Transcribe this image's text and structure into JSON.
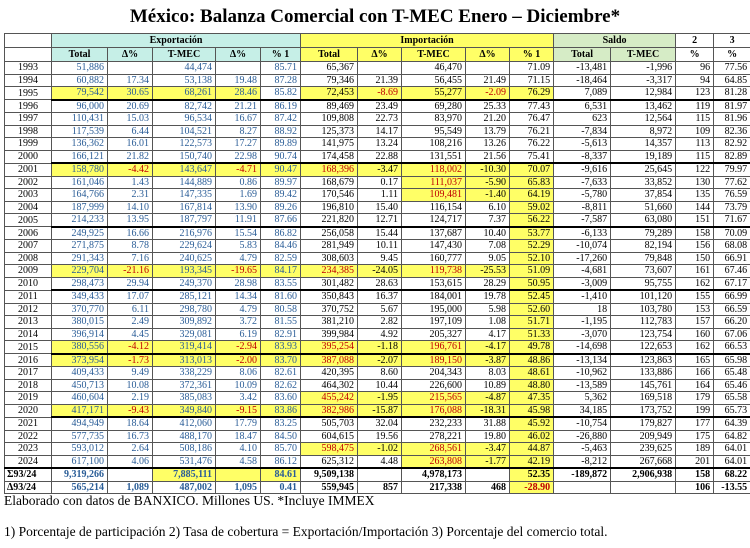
{
  "title": "México: Balanza Comercial con T-MEC Enero – Diciembre*",
  "headers": {
    "group": [
      "Exportación",
      "Importación",
      "Saldo",
      "2",
      "3"
    ],
    "sub": [
      "Total",
      "Δ%",
      "T-MEC",
      "Δ%",
      "% 1",
      "Total",
      "Δ%",
      "T-MEC",
      "Δ%",
      "% 1",
      "Total",
      "T-MEC",
      "%",
      "%"
    ]
  },
  "rows": [
    [
      "1993",
      "51,886",
      "",
      "44,474",
      "",
      "85.71",
      "65,367",
      "",
      "46,470",
      "",
      "71.09",
      "-13,481",
      "-1,996",
      "96",
      "77.56"
    ],
    [
      "1994",
      "60,882",
      "17.34",
      "53,138",
      "19.48",
      "87.28",
      "79,346",
      "21.39",
      "56,455",
      "21.49",
      "71.15",
      "-18,464",
      "-3,317",
      "94",
      "64.85"
    ],
    [
      "1995",
      "79,542",
      "30.65",
      "68,261",
      "28.46",
      "85.82",
      "72,453",
      "-8.69",
      "55,277",
      "-2.09",
      "76.29",
      "7,089",
      "12,984",
      "123",
      "81.28"
    ],
    [
      "1996",
      "96,000",
      "20.69",
      "82,742",
      "21.21",
      "86.19",
      "89,469",
      "23.49",
      "69,280",
      "25.33",
      "77.43",
      "6,531",
      "13,462",
      "119",
      "81.97"
    ],
    [
      "1997",
      "110,431",
      "15.03",
      "96,534",
      "16.67",
      "87.42",
      "109,808",
      "22.73",
      "83,970",
      "21.20",
      "76.47",
      "623",
      "12,564",
      "115",
      "81.96"
    ],
    [
      "1998",
      "117,539",
      "6.44",
      "104,521",
      "8.27",
      "88.92",
      "125,373",
      "14.17",
      "95,549",
      "13.79",
      "76.21",
      "-7,834",
      "8,972",
      "109",
      "82.36"
    ],
    [
      "1999",
      "136,362",
      "16.01",
      "122,573",
      "17.27",
      "89.89",
      "141,975",
      "13.24",
      "108,216",
      "13.26",
      "76.22",
      "-5,613",
      "14,357",
      "113",
      "82.92"
    ],
    [
      "2000",
      "166,121",
      "21.82",
      "150,740",
      "22.98",
      "90.74",
      "174,458",
      "22.88",
      "131,551",
      "21.56",
      "75.41",
      "-8,337",
      "19,189",
      "115",
      "82.89"
    ],
    [
      "2001",
      "158,780",
      "-4.42",
      "143,647",
      "-4.71",
      "90.47",
      "168,396",
      "-3.47",
      "118,002",
      "-10.30",
      "70.07",
      "-9,616",
      "25,645",
      "122",
      "79.97"
    ],
    [
      "2002",
      "161,046",
      "1.43",
      "144,889",
      "0.86",
      "89.97",
      "168,679",
      "0.17",
      "111,037",
      "-5.90",
      "65.83",
      "-7,633",
      "33,852",
      "130",
      "77.62"
    ],
    [
      "2003",
      "164,766",
      "2.31",
      "147,335",
      "1.69",
      "89.42",
      "170,546",
      "1.11",
      "109,481",
      "-1.40",
      "64.19",
      "-5,780",
      "37,854",
      "135",
      "76.59"
    ],
    [
      "2004",
      "187,999",
      "14.10",
      "167,814",
      "13.90",
      "89.26",
      "196,810",
      "15.40",
      "116,154",
      "6.10",
      "59.02",
      "-8,811",
      "51,660",
      "144",
      "73.79"
    ],
    [
      "2005",
      "214,233",
      "13.95",
      "187,797",
      "11.91",
      "87.66",
      "221,820",
      "12.71",
      "124,717",
      "7.37",
      "56.22",
      "-7,587",
      "63,080",
      "151",
      "71.67"
    ],
    [
      "2006",
      "249,925",
      "16.66",
      "216,976",
      "15.54",
      "86.82",
      "256,058",
      "15.44",
      "137,687",
      "10.40",
      "53.77",
      "-6,133",
      "79,289",
      "158",
      "70.09"
    ],
    [
      "2007",
      "271,875",
      "8.78",
      "229,624",
      "5.83",
      "84.46",
      "281,949",
      "10.11",
      "147,430",
      "7.08",
      "52.29",
      "-10,074",
      "82,194",
      "156",
      "68.08"
    ],
    [
      "2008",
      "291,343",
      "7.16",
      "240,625",
      "4.79",
      "82.59",
      "308,603",
      "9.45",
      "160,777",
      "9.05",
      "52.10",
      "-17,260",
      "79,848",
      "150",
      "66.91"
    ],
    [
      "2009",
      "229,704",
      "-21.16",
      "193,345",
      "-19.65",
      "84.17",
      "234,385",
      "-24.05",
      "119,738",
      "-25.53",
      "51.09",
      "-4,681",
      "73,607",
      "161",
      "67.46"
    ],
    [
      "2010",
      "298,473",
      "29.94",
      "249,370",
      "28.98",
      "83.55",
      "301,482",
      "28.63",
      "153,615",
      "28.29",
      "50.95",
      "-3,009",
      "95,755",
      "162",
      "67.17"
    ],
    [
      "2011",
      "349,433",
      "17.07",
      "285,121",
      "14.34",
      "81.60",
      "350,843",
      "16.37",
      "184,001",
      "19.78",
      "52.45",
      "-1,410",
      "101,120",
      "155",
      "66.99"
    ],
    [
      "2012",
      "370,770",
      "6.11",
      "298,780",
      "4.79",
      "80.58",
      "370,752",
      "5.67",
      "195,000",
      "5.98",
      "52.60",
      "18",
      "103,780",
      "153",
      "66.59"
    ],
    [
      "2013",
      "380,015",
      "2.49",
      "309,892",
      "3.72",
      "81.55",
      "381,210",
      "2.82",
      "197,109",
      "1.08",
      "51.71",
      "-1,195",
      "112,783",
      "157",
      "66.20"
    ],
    [
      "2014",
      "396,914",
      "4.45",
      "329,081",
      "6.19",
      "82.91",
      "399,984",
      "4.92",
      "205,327",
      "4.17",
      "51.33",
      "-3,070",
      "123,754",
      "160",
      "67.06"
    ],
    [
      "2015",
      "380,556",
      "-4.12",
      "319,414",
      "-2.94",
      "83.93",
      "395,254",
      "-1.18",
      "196,761",
      "-4.17",
      "49.78",
      "-14,698",
      "122,653",
      "162",
      "66.53"
    ],
    [
      "2016",
      "373,954",
      "-1.73",
      "313,013",
      "-2.00",
      "83.70",
      "387,088",
      "-2.07",
      "189,150",
      "-3.87",
      "48.86",
      "-13,134",
      "123,863",
      "165",
      "65.98"
    ],
    [
      "2017",
      "409,433",
      "9.49",
      "338,229",
      "8.06",
      "82.61",
      "420,395",
      "8.60",
      "204,343",
      "8.03",
      "48.61",
      "-10,962",
      "133,886",
      "166",
      "65.48"
    ],
    [
      "2018",
      "450,713",
      "10.08",
      "372,361",
      "10.09",
      "82.62",
      "464,302",
      "10.44",
      "226,600",
      "10.89",
      "48.80",
      "-13,589",
      "145,761",
      "164",
      "65.46"
    ],
    [
      "2019",
      "460,604",
      "2.19",
      "385,083",
      "3.42",
      "83.60",
      "455,242",
      "-1.95",
      "215,565",
      "-4.87",
      "47.35",
      "5,362",
      "169,518",
      "179",
      "65.58"
    ],
    [
      "2020",
      "417,171",
      "-9.43",
      "349,840",
      "-9.15",
      "83.86",
      "382,986",
      "-15.87",
      "176,088",
      "-18.31",
      "45.98",
      "34,185",
      "173,752",
      "199",
      "65.73"
    ],
    [
      "2021",
      "494,949",
      "18.64",
      "412,060",
      "17.79",
      "83.25",
      "505,703",
      "32.04",
      "232,233",
      "31.88",
      "45.92",
      "-10,754",
      "179,827",
      "177",
      "64.39"
    ],
    [
      "2022",
      "577,735",
      "16.73",
      "488,170",
      "18.47",
      "84.50",
      "604,615",
      "19.56",
      "278,221",
      "19.80",
      "46.02",
      "-26,880",
      "209,949",
      "175",
      "64.82"
    ],
    [
      "2023",
      "593,012",
      "2.64",
      "508,186",
      "4.10",
      "85.70",
      "598,475",
      "-1.02",
      "268,561",
      "-3.47",
      "44.87",
      "-5,463",
      "239,625",
      "189",
      "64.01"
    ],
    [
      "2024",
      "617,100",
      "4.06",
      "531,476",
      "4.58",
      "86.12",
      "625,312",
      "4.48",
      "263,808",
      "-1.77",
      "42.19",
      "-8,212",
      "267,668",
      "201",
      "64.01"
    ]
  ],
  "totals": [
    [
      "Σ93/24",
      "9,319,266",
      "",
      "7,885,111",
      "",
      "84.61",
      "9,509,138",
      "",
      "4,978,173",
      "",
      "52.35",
      "-189,872",
      "2,906,938",
      "158",
      "68.22"
    ],
    [
      "Δ93/24",
      "565,214",
      "1,089",
      "487,002",
      "1,095",
      "0.41",
      "559,945",
      "857",
      "217,338",
      "468",
      "-28.90",
      "",
      "",
      "106",
      "-13.55"
    ]
  ],
  "footnote1": "Elaborado con datos de BANXICO. Millones US. *Incluye IMMEX",
  "footnote2": "1) Porcentaje de participación   2) Tasa de cobertura = Exportación/Importación 3) Porcentaje del comercio total.",
  "colors": {
    "export_header": "#c6efe7",
    "import_header": "#ffff66",
    "saldo_header": "#d6ecc6",
    "highlight": "#ffff66",
    "export_text": "#2a5d97",
    "negative_text": "#c00000"
  }
}
